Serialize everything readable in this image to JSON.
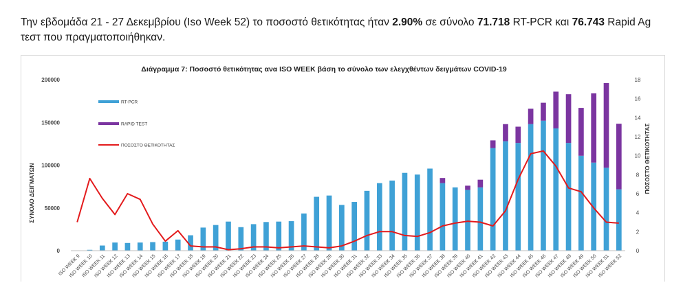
{
  "intro": {
    "p1": "Την εβδομάδα 21 - 27 Δεκεμβρίου (Iso Week 52) το ποσοστό θετικότητας ήταν ",
    "b1": "2.90%",
    "p2": " σε σύνολο ",
    "b2": "71.718",
    "p3": " RT-PCR και ",
    "b3": "76.743",
    "p4": " Rapid Ag",
    "line2": "τεστ που πραγματοποιήθηκαν."
  },
  "chart_data": {
    "type": "bar",
    "title": "Διάγραμμα 7: Ποσοστό θετικότητας ανα ISO WEEK  βάση το σύνολο των ελεγχθέντων δειγμάτων COVID-19",
    "ylabel": "ΣΥΝΟΛΟ  ΔΕΙΓΜΑΤΩΝ",
    "y2label": "ΠΟΣΟΣΤΟ ΘΕΤΙΚΟΤΗΤΑΣ",
    "ylim": [
      0,
      200000
    ],
    "y2lim": [
      0,
      18
    ],
    "yticks": [
      "0",
      "50000",
      "100000",
      "150000",
      "200000"
    ],
    "y2ticks": [
      "0",
      "2",
      "4",
      "6",
      "8",
      "10",
      "12",
      "14",
      "16",
      "18"
    ],
    "grid": false,
    "legend_position": "top-left",
    "categories": [
      "ISO WEEK 9",
      "ISO WEEK 10",
      "ISO WEEK 11",
      "ISO WEEK 12",
      "ISO WEEK 13",
      "ISO WEEK 14",
      "ISO WEEK 15",
      "ISO WEEK 16",
      "ISO WEEK 17",
      "ISO WEEK 18",
      "ISO WEEK 19",
      "ISO WEEK 20",
      "ISO WEEK 21",
      "ISO WEEK 22",
      "ISO WEEK 23",
      "ISO WEEK 24",
      "ISO WEEK 25",
      "ISO WEEK 26",
      "ISO WEEK 27",
      "ISO WEEK 28",
      "ISO WEEK 29",
      "ISO WEEK 30",
      "ISO WEEK 31",
      "ISO WEEK 32",
      "ISO WEEK 33",
      "ISO WEEK 34",
      "ISO WEEK 35",
      "ISO WEEK 36",
      "ISO WEEK 37",
      "ISO WEEK 38",
      "ISO WEEK 39",
      "ISO WEEK 40",
      "ISO WEEK 41",
      "ISO WEEK 42",
      "ISO WEEK 43",
      "ISO WEEK 44",
      "ISO WEEK 45",
      "ISO WEEK 46",
      "ISO WEEK 47",
      "ISO WEEK 48",
      "ISO WEEK 49",
      "ISO WEEK 50",
      "ISO WEEK 51",
      "ISO WEEK 52"
    ],
    "series": [
      {
        "name": "RT-PCR",
        "type": "bar",
        "color": "#3fa1d6",
        "values": [
          200,
          1000,
          6000,
          9500,
          9000,
          9500,
          10000,
          10500,
          13000,
          18000,
          27000,
          30000,
          34000,
          27500,
          31000,
          33500,
          34000,
          34500,
          43500,
          63000,
          64500,
          53500,
          57000,
          70000,
          79000,
          82000,
          91000,
          89000,
          96000,
          79000,
          74000,
          71000,
          74000,
          120000,
          128000,
          126000,
          148000,
          152000,
          143000,
          126000,
          111000,
          103000,
          97000,
          71718
        ]
      },
      {
        "name": "RAPID TEST",
        "type": "bar",
        "color": "#7b35a0",
        "values": [
          0,
          0,
          0,
          0,
          0,
          0,
          0,
          0,
          0,
          0,
          0,
          0,
          0,
          0,
          0,
          0,
          0,
          0,
          0,
          0,
          0,
          0,
          0,
          0,
          0,
          0,
          0,
          0,
          0,
          6000,
          0,
          5000,
          9000,
          9000,
          20000,
          19000,
          18000,
          21000,
          43000,
          57000,
          56000,
          81000,
          99000,
          76743
        ]
      },
      {
        "name": "ΠΟΣΟΣΤΟ ΘΕΤΙΚΟΤΗΤΑΣ",
        "type": "line",
        "axis": "right",
        "color": "#e31a1c",
        "values": [
          3.0,
          7.6,
          5.5,
          3.8,
          6.0,
          5.4,
          2.8,
          1.0,
          2.1,
          0.5,
          0.4,
          0.4,
          0.1,
          0.2,
          0.4,
          0.4,
          0.3,
          0.4,
          0.5,
          0.4,
          0.3,
          0.5,
          1.0,
          1.6,
          2.0,
          2.0,
          1.6,
          1.5,
          1.9,
          2.6,
          2.9,
          3.1,
          3.0,
          2.6,
          4.2,
          7.5,
          10.2,
          10.5,
          8.9,
          6.6,
          6.2,
          4.5,
          3.0,
          2.9
        ]
      }
    ]
  }
}
